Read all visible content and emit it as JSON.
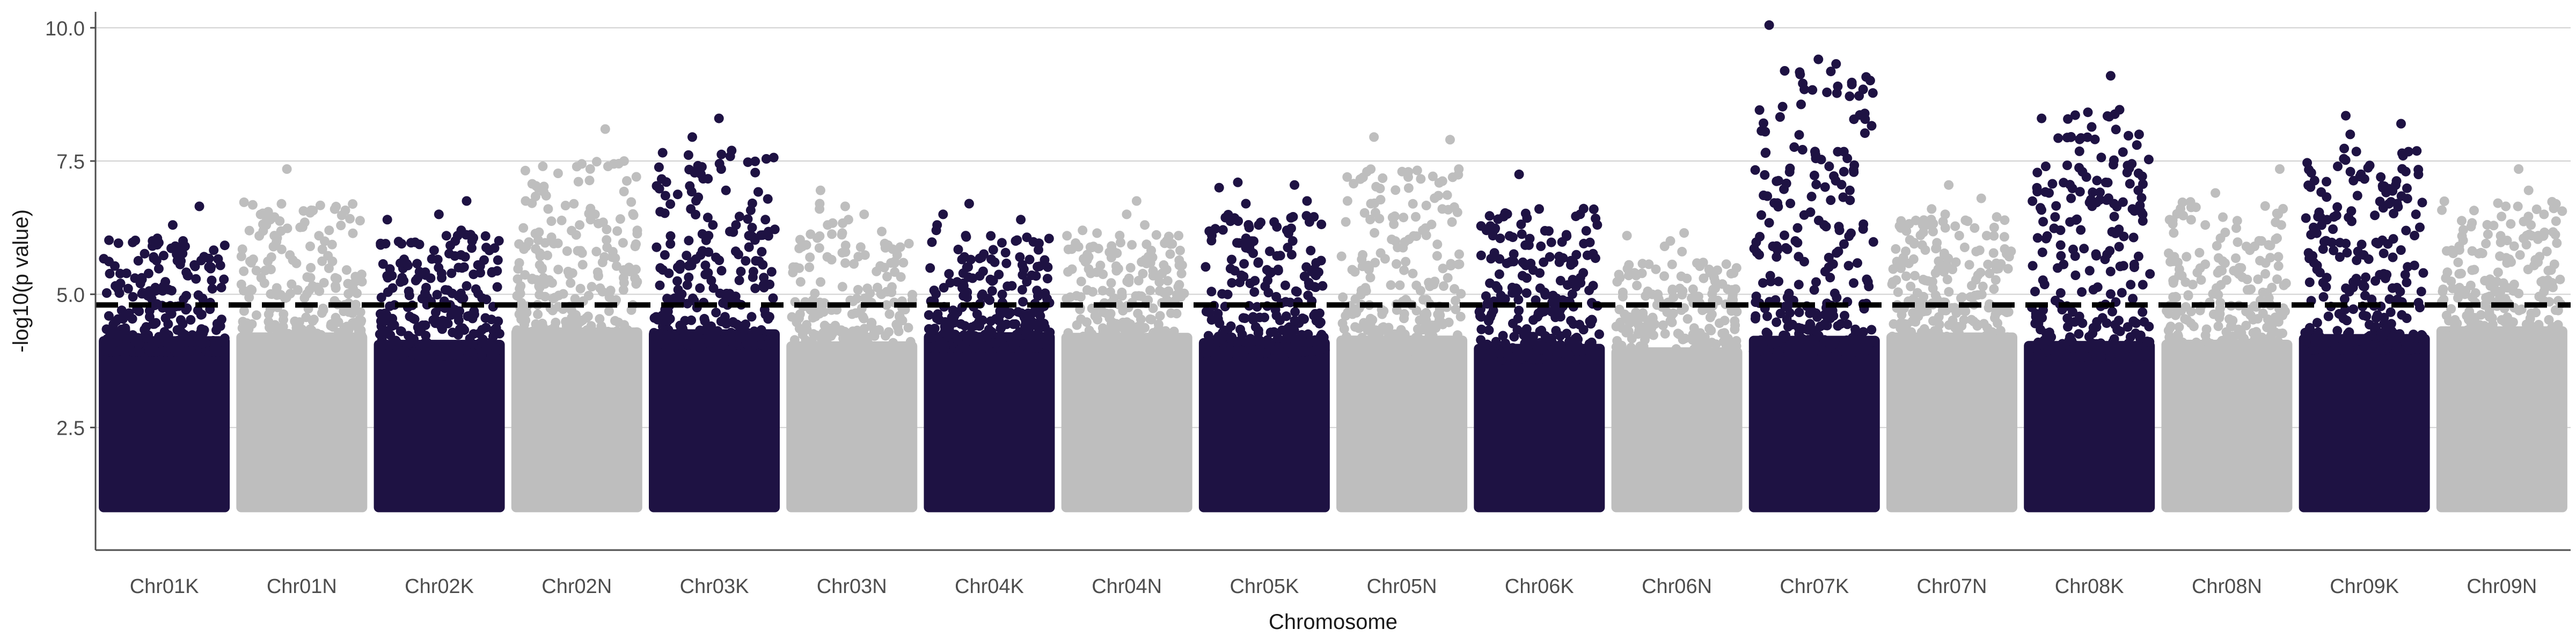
{
  "chart_data": {
    "type": "scatter",
    "subtype": "manhattan",
    "title": "",
    "xlabel": "Chromosome",
    "ylabel": "-log10(p value)",
    "ylim": [
      0.2,
      10.3
    ],
    "yticks": [
      2.5,
      5.0,
      7.5,
      10.0
    ],
    "ytick_labels": [
      "2.5",
      "5.0",
      "7.5",
      "10.0"
    ],
    "grid": "major y only",
    "threshold": 4.8,
    "colors": {
      "K": "#1e1243",
      "N": "#bebebe",
      "threshold": "#000000",
      "grid": "#d0d0d0"
    },
    "categories": [
      "Chr01K",
      "Chr01N",
      "Chr02K",
      "Chr02N",
      "Chr03K",
      "Chr03N",
      "Chr04K",
      "Chr04N",
      "Chr05K",
      "Chr05N",
      "Chr06K",
      "Chr06N",
      "Chr07K",
      "Chr07N",
      "Chr08K",
      "Chr08N",
      "Chr09K",
      "Chr09N"
    ],
    "series": [
      {
        "name": "Chr01K",
        "max": 6.65,
        "top_hits": [
          6.65,
          6.3,
          6.05,
          6.0,
          5.9,
          5.75,
          5.7
        ]
      },
      {
        "name": "Chr01N",
        "max": 7.35,
        "top_hits": [
          7.35,
          6.35,
          6.3,
          6.2,
          6.1,
          5.9
        ]
      },
      {
        "name": "Chr02K",
        "max": 6.75,
        "top_hits": [
          6.75,
          6.5,
          6.4,
          6.2,
          6.1,
          6.0
        ]
      },
      {
        "name": "Chr02N",
        "max": 8.1,
        "top_hits": [
          8.1,
          7.5,
          7.4,
          6.75,
          6.6,
          6.5,
          6.4,
          6.3
        ]
      },
      {
        "name": "Chr03K",
        "max": 8.3,
        "top_hits": [
          8.3,
          7.95,
          6.95,
          6.85,
          6.6,
          6.3,
          6.1,
          6.1
        ]
      },
      {
        "name": "Chr03N",
        "max": 6.95,
        "top_hits": [
          6.95,
          6.7,
          6.65,
          6.6,
          6.5,
          6.4,
          6.3
        ]
      },
      {
        "name": "Chr04K",
        "max": 6.7,
        "top_hits": [
          6.7,
          6.5,
          6.4,
          6.3,
          6.2,
          6.1,
          6.0
        ]
      },
      {
        "name": "Chr04N",
        "max": 6.75,
        "top_hits": [
          6.75,
          6.5,
          6.3,
          6.2,
          6.1,
          6.0
        ]
      },
      {
        "name": "Chr05K",
        "max": 7.1,
        "top_hits": [
          7.1,
          7.05,
          7.0,
          6.75,
          6.7,
          6.3,
          6.2
        ]
      },
      {
        "name": "Chr05N",
        "max": 7.95,
        "top_hits": [
          7.95,
          7.9,
          7.3,
          7.2,
          7.2,
          6.85,
          6.7
        ]
      },
      {
        "name": "Chr06K",
        "max": 7.25,
        "top_hits": [
          7.25,
          6.2,
          6.1,
          6.05,
          5.7,
          5.6
        ]
      },
      {
        "name": "Chr06N",
        "max": 6.15,
        "top_hits": [
          6.15,
          6.1,
          6.0,
          5.9,
          5.8
        ]
      },
      {
        "name": "Chr07K",
        "max": 10.05,
        "top_hits": [
          10.05,
          8.05,
          7.55,
          7.3,
          6.3,
          6.0,
          5.9,
          5.7
        ]
      },
      {
        "name": "Chr07N",
        "max": 7.05,
        "top_hits": [
          7.05,
          6.8,
          6.6,
          6.5,
          6.3,
          6.1
        ]
      },
      {
        "name": "Chr08K",
        "max": 9.1,
        "top_hits": [
          9.1,
          8.3,
          8.0,
          7.8,
          7.4,
          6.95,
          6.9,
          6.8,
          6.6,
          6.5
        ]
      },
      {
        "name": "Chr08N",
        "max": 7.35,
        "top_hits": [
          7.35,
          6.9,
          6.35,
          6.3,
          6.0,
          5.9
        ]
      },
      {
        "name": "Chr09K",
        "max": 8.35,
        "top_hits": [
          8.35,
          8.2,
          8.0,
          7.6,
          7.4,
          7.3,
          7.2,
          7.0,
          6.7,
          6.5
        ]
      },
      {
        "name": "Chr09N",
        "max": 7.35,
        "top_hits": [
          7.35,
          6.95,
          6.65,
          6.5,
          6.3,
          6.1,
          5.9
        ]
      }
    ]
  }
}
